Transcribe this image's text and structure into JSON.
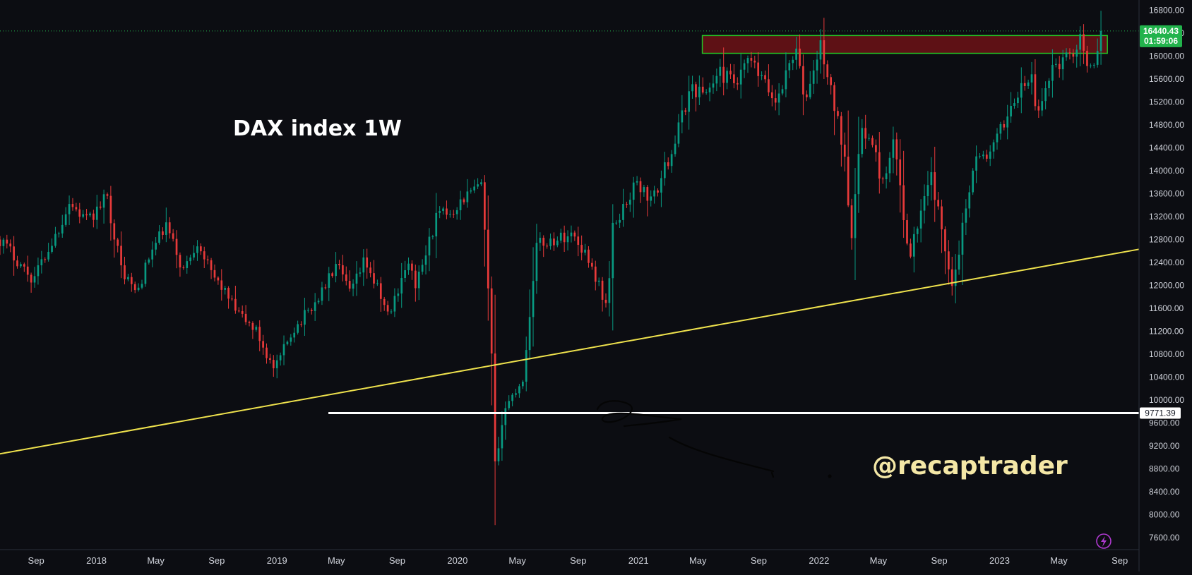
{
  "chart_data": {
    "type": "candlestick",
    "title": "DAX index 1W",
    "watermark": "@recaptrader",
    "ylim": [
      7400,
      16950
    ],
    "y_ticks": [
      "16800.00",
      "16400.00",
      "16000.00",
      "15600.00",
      "15200.00",
      "14800.00",
      "14400.00",
      "14000.00",
      "13600.00",
      "13200.00",
      "12800.00",
      "12400.00",
      "12000.00",
      "11600.00",
      "11200.00",
      "10800.00",
      "10400.00",
      "10000.00",
      "9600.00",
      "9200.00",
      "8800.00",
      "8400.00",
      "8000.00",
      "7600.00"
    ],
    "x_ticks": [
      {
        "label": "Sep",
        "date": "2017-09-01"
      },
      {
        "label": "2018",
        "date": "2018-01-01"
      },
      {
        "label": "May",
        "date": "2018-05-01"
      },
      {
        "label": "Sep",
        "date": "2018-09-01"
      },
      {
        "label": "2019",
        "date": "2019-01-01"
      },
      {
        "label": "May",
        "date": "2019-05-01"
      },
      {
        "label": "Sep",
        "date": "2019-09-01"
      },
      {
        "label": "2020",
        "date": "2020-01-01"
      },
      {
        "label": "May",
        "date": "2020-05-01"
      },
      {
        "label": "Sep",
        "date": "2020-09-01"
      },
      {
        "label": "2021",
        "date": "2021-01-01"
      },
      {
        "label": "May",
        "date": "2021-05-01"
      },
      {
        "label": "Sep",
        "date": "2021-09-01"
      },
      {
        "label": "2022",
        "date": "2022-01-01"
      },
      {
        "label": "May",
        "date": "2022-05-01"
      },
      {
        "label": "Sep",
        "date": "2022-09-01"
      },
      {
        "label": "2023",
        "date": "2023-01-01"
      },
      {
        "label": "May",
        "date": "2023-05-01"
      },
      {
        "label": "Sep",
        "date": "2023-09-01"
      }
    ],
    "x_range": [
      "2017-06-20",
      "2023-10-10"
    ],
    "anchors": [
      [
        "2017-06-20",
        12800
      ],
      [
        "2017-07-20",
        12500
      ],
      [
        "2017-08-25",
        12100
      ],
      [
        "2017-10-15",
        12950
      ],
      [
        "2017-11-07",
        13450
      ],
      [
        "2017-12-15",
        13100
      ],
      [
        "2018-01-22",
        13550
      ],
      [
        "2018-02-20",
        12300
      ],
      [
        "2018-03-23",
        11850
      ],
      [
        "2018-04-20",
        12550
      ],
      [
        "2018-05-22",
        13050
      ],
      [
        "2018-06-25",
        12250
      ],
      [
        "2018-07-25",
        12800
      ],
      [
        "2018-08-20",
        12200
      ],
      [
        "2018-09-10",
        12000
      ],
      [
        "2018-10-10",
        11550
      ],
      [
        "2018-11-20",
        11200
      ],
      [
        "2018-12-27",
        10500
      ],
      [
        "2019-01-31",
        11200
      ],
      [
        "2019-03-20",
        11700
      ],
      [
        "2019-05-01",
        12350
      ],
      [
        "2019-05-30",
        11850
      ],
      [
        "2019-06-28",
        12450
      ],
      [
        "2019-08-15",
        11450
      ],
      [
        "2019-09-20",
        12400
      ],
      [
        "2019-10-10",
        12000
      ],
      [
        "2019-11-20",
        13200
      ],
      [
        "2019-12-20",
        13300
      ],
      [
        "2020-01-17",
        13550
      ],
      [
        "2020-02-19",
        13750
      ],
      [
        "2020-03-09",
        11000
      ],
      [
        "2020-03-18",
        8600
      ],
      [
        "2020-04-02",
        9800
      ],
      [
        "2020-05-14",
        10400
      ],
      [
        "2020-06-08",
        12700
      ],
      [
        "2020-07-17",
        12800
      ],
      [
        "2020-08-20",
        12900
      ],
      [
        "2020-09-21",
        12500
      ],
      [
        "2020-10-30",
        11600
      ],
      [
        "2020-11-10",
        13000
      ],
      [
        "2020-12-28",
        13800
      ],
      [
        "2021-01-29",
        13450
      ],
      [
        "2021-03-15",
        14500
      ],
      [
        "2021-04-16",
        15450
      ],
      [
        "2021-05-14",
        15350
      ],
      [
        "2021-06-15",
        15700
      ],
      [
        "2021-07-20",
        15500
      ],
      [
        "2021-08-12",
        15950
      ],
      [
        "2021-10-05",
        15200
      ],
      [
        "2021-11-17",
        16200
      ],
      [
        "2021-12-01",
        15150
      ],
      [
        "2022-01-05",
        16200
      ],
      [
        "2022-01-27",
        15300
      ],
      [
        "2022-02-22",
        14300
      ],
      [
        "2022-03-07",
        12850
      ],
      [
        "2022-03-29",
        14800
      ],
      [
        "2022-04-20",
        14400
      ],
      [
        "2022-05-12",
        13700
      ],
      [
        "2022-06-03",
        14550
      ],
      [
        "2022-06-22",
        13050
      ],
      [
        "2022-07-05",
        12600
      ],
      [
        "2022-08-16",
        13900
      ],
      [
        "2022-09-07",
        12900
      ],
      [
        "2022-09-29",
        12000
      ],
      [
        "2022-11-10",
        14200
      ],
      [
        "2022-12-15",
        14300
      ],
      [
        "2023-01-27",
        15200
      ],
      [
        "2023-03-06",
        15650
      ],
      [
        "2023-03-17",
        14900
      ],
      [
        "2023-04-18",
        15850
      ],
      [
        "2023-05-10",
        15900
      ],
      [
        "2023-06-16",
        16300
      ],
      [
        "2023-07-07",
        15600
      ],
      [
        "2023-07-31",
        16440.43
      ]
    ],
    "resistance_zone": {
      "from_date": "2021-05-10",
      "to_date": "2023-08-07",
      "low": 16050,
      "high": 16360
    },
    "trendline": {
      "p1": {
        "date": "2016-12-15",
        "price": 8770
      },
      "p2": {
        "date": "2023-10-10",
        "price": 12630
      }
    },
    "support_line": {
      "from_date": "2019-04-15",
      "price": 9771.39
    },
    "last_price": "16440.43",
    "countdown": "01:59:06",
    "support_label": "9771.39",
    "colors": {
      "up": "#089981",
      "down": "#e83a3a",
      "zone_fill": "#6d1316",
      "zone_border": "#26c526",
      "trend": "#efe24d",
      "support": "#ffffff",
      "tag": "#22b34c"
    }
  }
}
